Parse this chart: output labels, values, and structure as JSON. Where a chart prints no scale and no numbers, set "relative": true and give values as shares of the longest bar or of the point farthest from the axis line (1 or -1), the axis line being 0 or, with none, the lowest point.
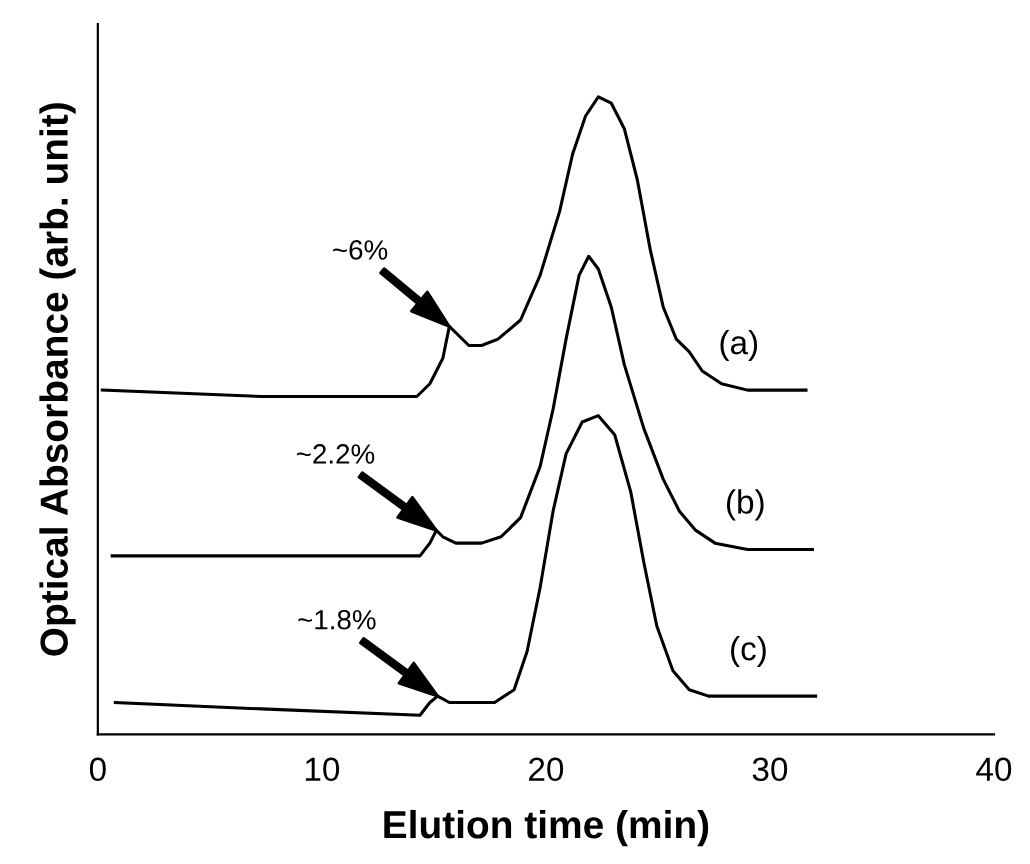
{
  "chart_data": {
    "type": "line",
    "relative": true,
    "xlabel": "Elution time (min)",
    "ylabel": "Optical Absorbance (arb. unit)",
    "xlim": [
      0,
      40
    ],
    "xticks": [
      0,
      10,
      20,
      30,
      40
    ],
    "grid": false,
    "legend": false,
    "marker": "none",
    "line_style": "solid",
    "series": [
      {
        "name": "(a)",
        "color": "#000000",
        "x": [
          0.2,
          7.29,
          14.24,
          14.82,
          15.4,
          15.69,
          15.98,
          16.56,
          17.13,
          17.86,
          18.87,
          19.74,
          20.61,
          21.19,
          21.77,
          22.34,
          22.92,
          23.5,
          24.08,
          24.66,
          25.24,
          25.82,
          26.4,
          26.98,
          27.84,
          29.0,
          30.45,
          31.61
        ],
        "values": [
          0.54,
          0.53,
          0.53,
          0.55,
          0.59,
          0.64,
          0.63,
          0.61,
          0.61,
          0.62,
          0.65,
          0.72,
          0.82,
          0.91,
          0.97,
          1.0,
          0.99,
          0.95,
          0.87,
          0.76,
          0.67,
          0.62,
          0.6,
          0.57,
          0.55,
          0.54,
          0.54,
          0.54
        ]
      },
      {
        "name": "(b)",
        "color": "#000000",
        "x": [
          0.64,
          7.29,
          14.38,
          14.82,
          15.11,
          15.4,
          15.98,
          17.13,
          18.0,
          18.87,
          19.74,
          20.32,
          20.9,
          21.48,
          21.91,
          22.34,
          22.92,
          23.5,
          24.37,
          25.24,
          25.96,
          26.69,
          27.55,
          29.0,
          31.9
        ],
        "values": [
          0.28,
          0.28,
          0.28,
          0.3,
          0.32,
          0.31,
          0.3,
          0.3,
          0.31,
          0.34,
          0.42,
          0.51,
          0.62,
          0.72,
          0.75,
          0.73,
          0.67,
          0.58,
          0.48,
          0.4,
          0.35,
          0.32,
          0.3,
          0.29,
          0.29
        ]
      },
      {
        "name": "(c)",
        "color": "#000000",
        "x": [
          0.78,
          7.29,
          14.38,
          14.82,
          15.17,
          15.69,
          16.56,
          17.71,
          18.58,
          19.16,
          19.74,
          20.32,
          20.9,
          21.62,
          22.34,
          23.07,
          23.79,
          24.37,
          24.95,
          25.67,
          26.4,
          27.26,
          29.0,
          30.45,
          32.04
        ],
        "values": [
          0.05,
          0.04,
          0.03,
          0.05,
          0.06,
          0.05,
          0.05,
          0.05,
          0.07,
          0.13,
          0.23,
          0.35,
          0.44,
          0.49,
          0.5,
          0.47,
          0.38,
          0.27,
          0.17,
          0.1,
          0.07,
          0.06,
          0.06,
          0.06,
          0.06
        ]
      }
    ],
    "annotations": [
      "~6%",
      "~2.2%",
      "~1.8%"
    ]
  }
}
